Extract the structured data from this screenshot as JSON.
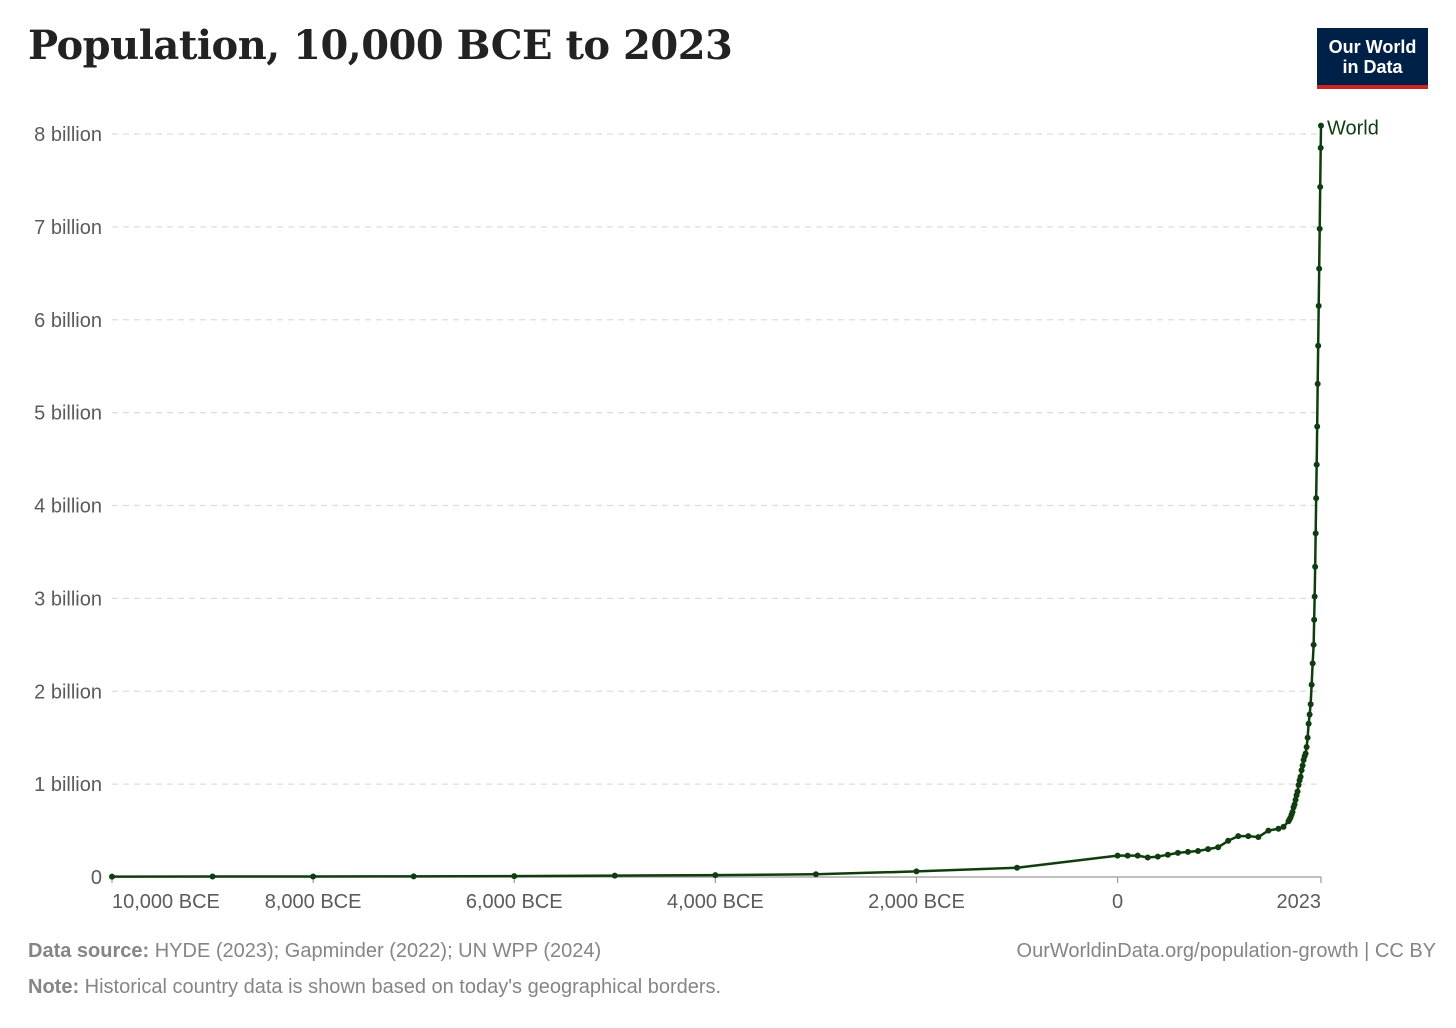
{
  "title": "Population, 10,000 BCE to 2023",
  "logo": {
    "line1": "Our World",
    "line2": "in Data"
  },
  "colors": {
    "series": "#0f3d0f",
    "grid": "#dddddd",
    "axis": "#999999",
    "text": "#5b5b5b",
    "logo_bg": "#002147",
    "logo_accent": "#ce261e"
  },
  "footer": {
    "source_label": "Data source:",
    "source_text": " HYDE (2023); Gapminder (2022); UN WPP (2024)",
    "note_label": "Note:",
    "note_text": " Historical country data is shown based on today's geographical borders.",
    "url": "OurWorldinData.org/population-growth",
    "license": " | CC BY"
  },
  "chart_data": {
    "type": "line",
    "title": "Population, 10,000 BCE to 2023",
    "xlabel": "",
    "ylabel": "",
    "xlim": [
      -10000,
      2023
    ],
    "ylim": [
      0,
      8000000000
    ],
    "grid": "horizontal dashed",
    "x_ticks": [
      {
        "value": -10000,
        "label": "10,000 BCE"
      },
      {
        "value": -8000,
        "label": "8,000 BCE"
      },
      {
        "value": -6000,
        "label": "6,000 BCE"
      },
      {
        "value": -4000,
        "label": "4,000 BCE"
      },
      {
        "value": -2000,
        "label": "2,000 BCE"
      },
      {
        "value": 0,
        "label": "0"
      },
      {
        "value": 2023,
        "label": "2023"
      }
    ],
    "y_ticks": [
      {
        "value": 0,
        "label": "0"
      },
      {
        "value": 1000000000,
        "label": "1 billion"
      },
      {
        "value": 2000000000,
        "label": "2 billion"
      },
      {
        "value": 3000000000,
        "label": "3 billion"
      },
      {
        "value": 4000000000,
        "label": "4 billion"
      },
      {
        "value": 5000000000,
        "label": "5 billion"
      },
      {
        "value": 6000000000,
        "label": "6 billion"
      },
      {
        "value": 7000000000,
        "label": "7 billion"
      },
      {
        "value": 8000000000,
        "label": "8 billion"
      }
    ],
    "series": [
      {
        "name": "World",
        "x": [
          -10000,
          -9000,
          -8000,
          -7000,
          -6000,
          -5000,
          -4000,
          -3000,
          -2000,
          -1000,
          0,
          100,
          200,
          300,
          400,
          500,
          600,
          700,
          800,
          900,
          1000,
          1100,
          1200,
          1300,
          1400,
          1500,
          1600,
          1650,
          1700,
          1710,
          1720,
          1730,
          1740,
          1750,
          1760,
          1770,
          1780,
          1790,
          1800,
          1810,
          1820,
          1830,
          1840,
          1850,
          1860,
          1870,
          1880,
          1890,
          1900,
          1910,
          1920,
          1930,
          1940,
          1950,
          1955,
          1960,
          1965,
          1970,
          1975,
          1980,
          1985,
          1990,
          1995,
          2000,
          2005,
          2010,
          2015,
          2020,
          2023
        ],
        "y": [
          4000000,
          5000000,
          5000000,
          7000000,
          10000000,
          15000000,
          20000000,
          30000000,
          60000000,
          100000000,
          230000000,
          230000000,
          230000000,
          210000000,
          220000000,
          240000000,
          260000000,
          270000000,
          280000000,
          300000000,
          320000000,
          390000000,
          440000000,
          440000000,
          430000000,
          500000000,
          520000000,
          540000000,
          600000000,
          620000000,
          640000000,
          670000000,
          700000000,
          750000000,
          780000000,
          830000000,
          880000000,
          920000000,
          990000000,
          1040000000,
          1080000000,
          1150000000,
          1200000000,
          1260000000,
          1300000000,
          1330000000,
          1400000000,
          1500000000,
          1650000000,
          1750000000,
          1860000000,
          2070000000,
          2300000000,
          2500000000,
          2770000000,
          3020000000,
          3340000000,
          3700000000,
          4080000000,
          4440000000,
          4850000000,
          5310000000,
          5720000000,
          6150000000,
          6550000000,
          6980000000,
          7430000000,
          7850000000,
          8090000000
        ]
      }
    ]
  }
}
